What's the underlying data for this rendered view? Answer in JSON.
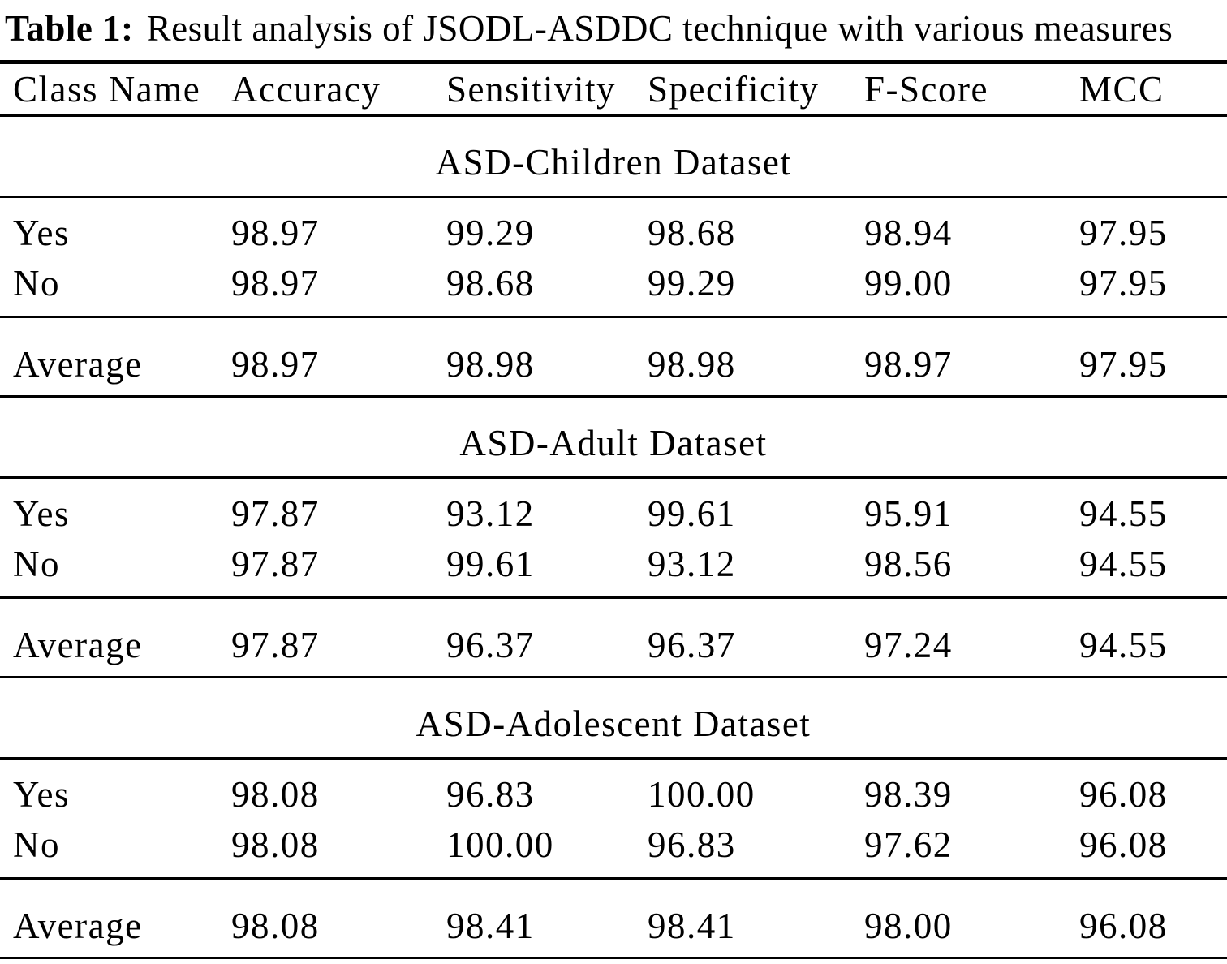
{
  "title": {
    "label": "Table 1:",
    "text": "Result analysis of JSODL-ASDDC technique with various measures"
  },
  "columns": [
    "Class Name",
    "Accuracy",
    "Sensitivity",
    "Specificity",
    "F-Score",
    "MCC"
  ],
  "sections": [
    {
      "name": "ASD-Children Dataset",
      "rows": [
        {
          "label": "Yes",
          "values": [
            "98.97",
            "99.29",
            "98.68",
            "98.94",
            "97.95"
          ]
        },
        {
          "label": "No",
          "values": [
            "98.97",
            "98.68",
            "99.29",
            "99.00",
            "97.95"
          ]
        },
        {
          "label": "Average",
          "values": [
            "98.97",
            "98.98",
            "98.98",
            "98.97",
            "97.95"
          ]
        }
      ]
    },
    {
      "name": "ASD-Adult Dataset",
      "rows": [
        {
          "label": "Yes",
          "values": [
            "97.87",
            "93.12",
            "99.61",
            "95.91",
            "94.55"
          ]
        },
        {
          "label": "No",
          "values": [
            "97.87",
            "99.61",
            "93.12",
            "98.56",
            "94.55"
          ]
        },
        {
          "label": "Average",
          "values": [
            "97.87",
            "96.37",
            "96.37",
            "97.24",
            "94.55"
          ]
        }
      ]
    },
    {
      "name": "ASD-Adolescent Dataset",
      "rows": [
        {
          "label": "Yes",
          "values": [
            "98.08",
            "96.83",
            "100.00",
            "98.39",
            "96.08"
          ]
        },
        {
          "label": "No",
          "values": [
            "98.08",
            "100.00",
            "96.83",
            "97.62",
            "96.08"
          ]
        },
        {
          "label": "Average",
          "values": [
            "98.08",
            "98.41",
            "98.41",
            "98.00",
            "96.08"
          ]
        }
      ]
    }
  ],
  "chart_data": {
    "type": "table",
    "title": "Table 1: Result analysis of JSODL-ASDDC technique with various measures",
    "columns": [
      "Class Name",
      "Accuracy",
      "Sensitivity",
      "Specificity",
      "F-Score",
      "MCC"
    ],
    "groups": [
      {
        "group": "ASD-Children Dataset",
        "rows": [
          [
            "Yes",
            98.97,
            99.29,
            98.68,
            98.94,
            97.95
          ],
          [
            "No",
            98.97,
            98.68,
            99.29,
            99.0,
            97.95
          ],
          [
            "Average",
            98.97,
            98.98,
            98.98,
            98.97,
            97.95
          ]
        ]
      },
      {
        "group": "ASD-Adult Dataset",
        "rows": [
          [
            "Yes",
            97.87,
            93.12,
            99.61,
            95.91,
            94.55
          ],
          [
            "No",
            97.87,
            99.61,
            93.12,
            98.56,
            94.55
          ],
          [
            "Average",
            97.87,
            96.37,
            96.37,
            97.24,
            94.55
          ]
        ]
      },
      {
        "group": "ASD-Adolescent Dataset",
        "rows": [
          [
            "Yes",
            98.08,
            96.83,
            100.0,
            98.39,
            96.08
          ],
          [
            "No",
            98.08,
            100.0,
            96.83,
            97.62,
            96.08
          ],
          [
            "Average",
            98.08,
            98.41,
            98.41,
            98.0,
            96.08
          ]
        ]
      }
    ]
  }
}
